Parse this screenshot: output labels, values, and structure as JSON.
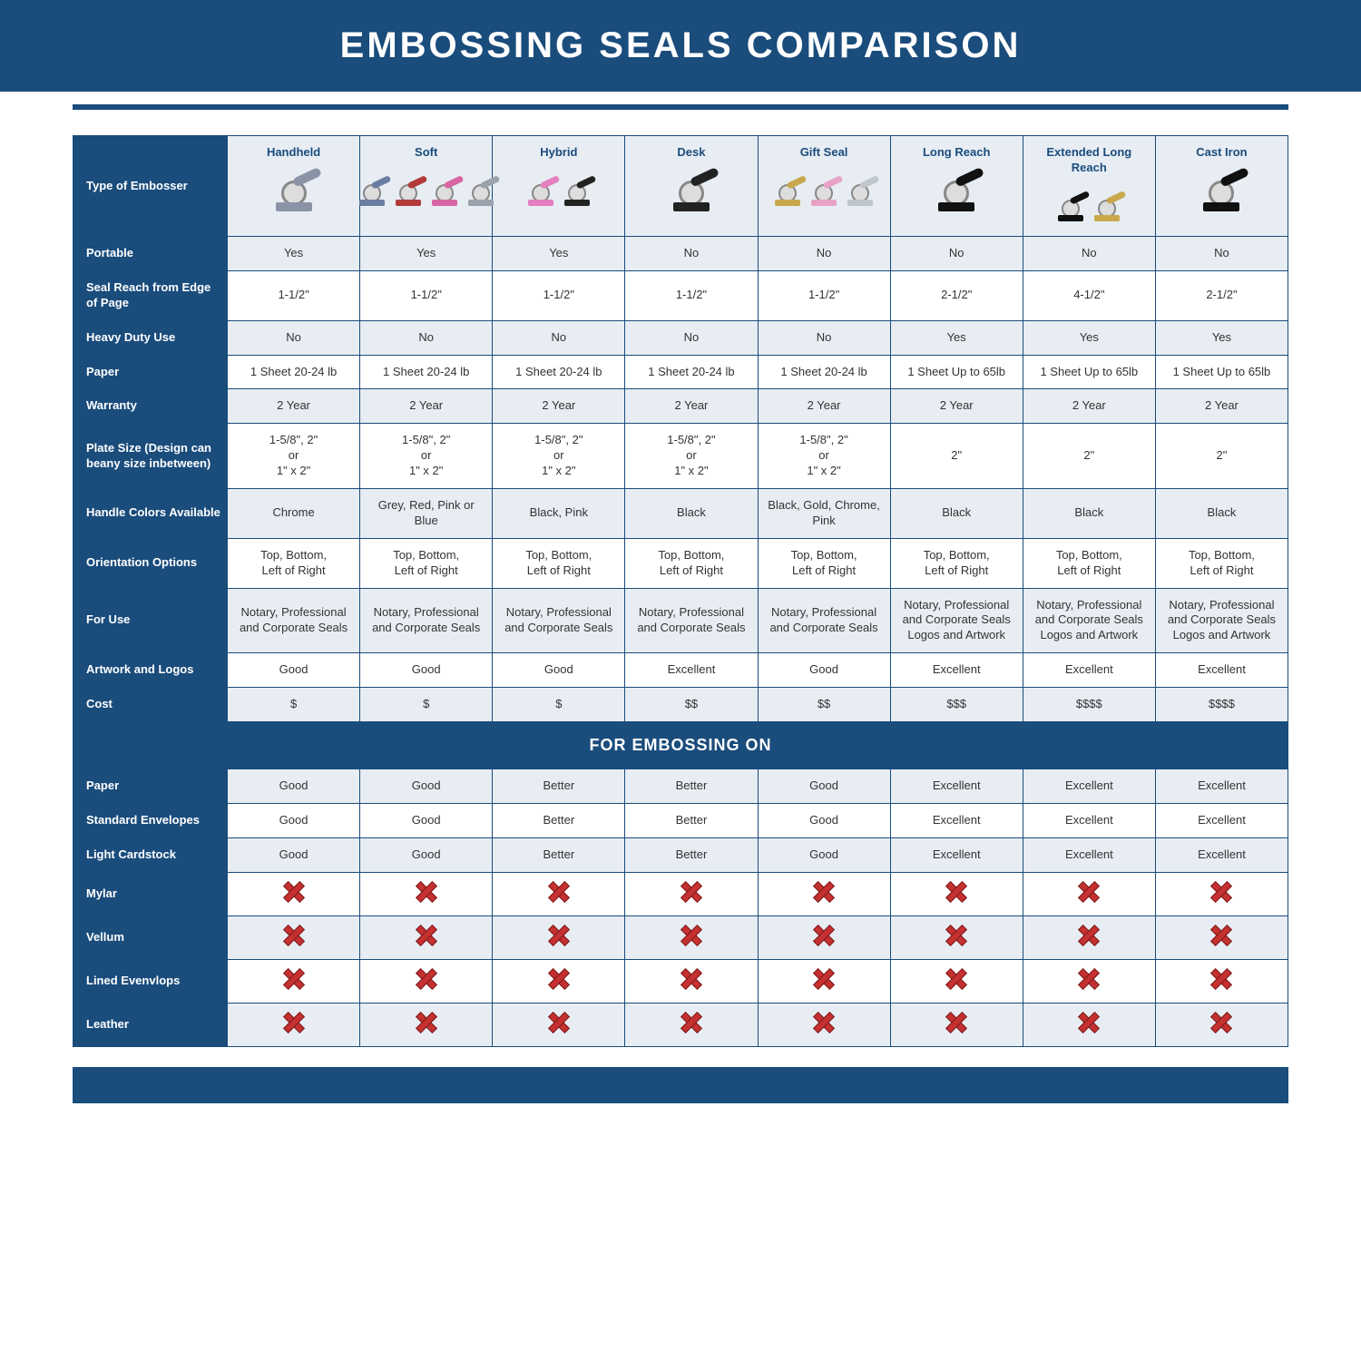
{
  "page": {
    "title": "EMBOSSING SEALS COMPARISON",
    "brand_color": "#1a4c7c",
    "alt_row_bg": "#e7edf3",
    "row_bg": "#ffffff",
    "x_color": "#c53030",
    "section_label": "FOR EMBOSSING ON"
  },
  "table": {
    "type": "comparison-table",
    "row_header_label": "Type of Embosser",
    "columns": [
      {
        "label": "Handheld",
        "icon_colors": [
          "#8a94a6"
        ]
      },
      {
        "label": "Soft",
        "icon_colors": [
          "#6a7da0",
          "#b23a3a",
          "#d864a3",
          "#9aa3ad"
        ]
      },
      {
        "label": "Hybrid",
        "icon_colors": [
          "#e57fbf",
          "#222222"
        ]
      },
      {
        "label": "Desk",
        "icon_colors": [
          "#222222"
        ]
      },
      {
        "label": "Gift Seal",
        "icon_colors": [
          "#c9a84c",
          "#e8a2c8",
          "#bfc6cc"
        ]
      },
      {
        "label": "Long Reach",
        "icon_colors": [
          "#111111"
        ]
      },
      {
        "label": "Extended Long Reach",
        "icon_colors": [
          "#111111",
          "#c9a84c"
        ]
      },
      {
        "label": "Cast Iron",
        "icon_colors": [
          "#111111"
        ]
      }
    ],
    "rows": [
      {
        "label": "Portable",
        "cells": [
          "Yes",
          "Yes",
          "Yes",
          "No",
          "No",
          "No",
          "No",
          "No"
        ]
      },
      {
        "label": "Seal Reach from Edge of Page",
        "cells": [
          "1-1/2\"",
          "1-1/2\"",
          "1-1/2\"",
          "1-1/2\"",
          "1-1/2\"",
          "2-1/2\"",
          "4-1/2\"",
          "2-1/2\""
        ]
      },
      {
        "label": "Heavy Duty Use",
        "cells": [
          "No",
          "No",
          "No",
          "No",
          "No",
          "Yes",
          "Yes",
          "Yes"
        ]
      },
      {
        "label": "Paper",
        "cells": [
          "1 Sheet 20-24 lb",
          "1 Sheet 20-24 lb",
          "1 Sheet 20-24 lb",
          "1 Sheet 20-24 lb",
          "1 Sheet 20-24 lb",
          "1 Sheet Up to 65lb",
          "1 Sheet Up to 65lb",
          "1 Sheet Up to 65lb"
        ]
      },
      {
        "label": "Warranty",
        "cells": [
          "2 Year",
          "2 Year",
          "2 Year",
          "2 Year",
          "2 Year",
          "2 Year",
          "2 Year",
          "2 Year"
        ]
      },
      {
        "label": "Plate Size (Design can beany size inbetween)",
        "cells": [
          "1-5/8\", 2\"\nor\n1\" x 2\"",
          "1-5/8\", 2\"\nor\n1\" x 2\"",
          "1-5/8\", 2\"\nor\n1\" x 2\"",
          "1-5/8\", 2\"\nor\n1\" x 2\"",
          "1-5/8\", 2\"\nor\n1\" x 2\"",
          "2\"",
          "2\"",
          "2\""
        ]
      },
      {
        "label": "Handle Colors Available",
        "cells": [
          "Chrome",
          "Grey, Red, Pink or Blue",
          "Black, Pink",
          "Black",
          "Black, Gold, Chrome, Pink",
          "Black",
          "Black",
          "Black"
        ]
      },
      {
        "label": "Orientation Options",
        "cells": [
          "Top, Bottom,\nLeft of Right",
          "Top, Bottom,\nLeft of Right",
          "Top, Bottom,\nLeft of Right",
          "Top, Bottom,\nLeft of Right",
          "Top, Bottom,\nLeft of Right",
          "Top, Bottom,\nLeft of Right",
          "Top, Bottom,\nLeft of Right",
          "Top, Bottom,\nLeft of Right"
        ]
      },
      {
        "label": "For Use",
        "cells": [
          "Notary, Professional and Corporate Seals",
          "Notary, Professional and Corporate Seals",
          "Notary, Professional and Corporate Seals",
          "Notary, Professional and Corporate Seals",
          "Notary, Professional and Corporate Seals",
          "Notary, Professional and Corporate Seals Logos and Artwork",
          "Notary, Professional and Corporate Seals Logos and Artwork",
          "Notary, Professional and Corporate Seals Logos and Artwork"
        ]
      },
      {
        "label": "Artwork and Logos",
        "cells": [
          "Good",
          "Good",
          "Good",
          "Excellent",
          "Good",
          "Excellent",
          "Excellent",
          "Excellent"
        ]
      },
      {
        "label": "Cost",
        "cells": [
          "$",
          "$",
          "$",
          "$$",
          "$$",
          "$$$",
          "$$$$",
          "$$$$"
        ]
      }
    ],
    "embossing_rows": [
      {
        "label": "Paper",
        "cells": [
          "Good",
          "Good",
          "Better",
          "Better",
          "Good",
          "Excellent",
          "Excellent",
          "Excellent"
        ]
      },
      {
        "label": "Standard Envelopes",
        "cells": [
          "Good",
          "Good",
          "Better",
          "Better",
          "Good",
          "Excellent",
          "Excellent",
          "Excellent"
        ]
      },
      {
        "label": "Light Cardstock",
        "cells": [
          "Good",
          "Good",
          "Better",
          "Better",
          "Good",
          "Excellent",
          "Excellent",
          "Excellent"
        ]
      },
      {
        "label": "Mylar",
        "cells": [
          "X",
          "X",
          "X",
          "X",
          "X",
          "X",
          "X",
          "X"
        ]
      },
      {
        "label": "Vellum",
        "cells": [
          "X",
          "X",
          "X",
          "X",
          "X",
          "X",
          "X",
          "X"
        ]
      },
      {
        "label": "Lined Evenvlops",
        "cells": [
          "X",
          "X",
          "X",
          "X",
          "X",
          "X",
          "X",
          "X"
        ]
      },
      {
        "label": "Leather",
        "cells": [
          "X",
          "X",
          "X",
          "X",
          "X",
          "X",
          "X",
          "X"
        ]
      }
    ]
  }
}
